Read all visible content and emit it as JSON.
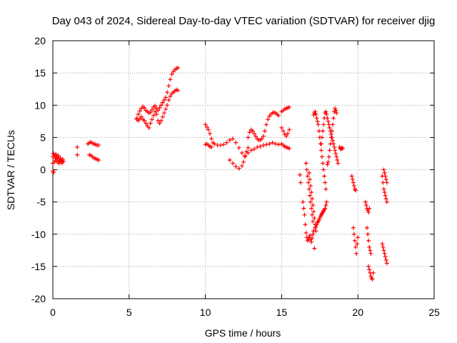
{
  "chart_data": {
    "type": "scatter",
    "title": "Day 043 of 2024, Sidereal Day-to-day VTEC variation (SDTVAR) for receiver djig",
    "xlabel": "GPS time / hours",
    "ylabel": "SDTVAR / TECUs",
    "xlim": [
      0,
      25
    ],
    "ylim": [
      -20,
      20
    ],
    "xticks": [
      0,
      5,
      10,
      15,
      20,
      25
    ],
    "yticks": [
      -20,
      -15,
      -10,
      -5,
      0,
      5,
      10,
      15,
      20
    ],
    "grid": true,
    "marker": "+",
    "colors": {
      "points": "#ff0000"
    },
    "series": [
      {
        "x": [
          0.0,
          0.05,
          0.1,
          0.15,
          0.2,
          0.25,
          0.3,
          0.35,
          0.4,
          0.45,
          0.5,
          0.55,
          0.6,
          0.65,
          0.7,
          0.0,
          0.1,
          0.2,
          0.3,
          0.4,
          0.5,
          0.6,
          0.0,
          0.05,
          1.6,
          1.6,
          2.3,
          2.4,
          2.5,
          2.6,
          2.7,
          2.8,
          2.9,
          3.0,
          2.4,
          2.5,
          2.6,
          2.7,
          2.8,
          2.9,
          3.0,
          5.5,
          5.6,
          5.7,
          5.8,
          5.9,
          6.0,
          6.1,
          6.2,
          6.3,
          6.4,
          6.5,
          6.6,
          6.7,
          6.8,
          6.9,
          7.0,
          7.1,
          7.2,
          7.3,
          7.4,
          7.5,
          7.6,
          7.7,
          7.8,
          7.9,
          8.0,
          8.1,
          8.2,
          5.5,
          5.6,
          5.7,
          5.8,
          5.9,
          6.0,
          6.1,
          6.2,
          6.3,
          6.4,
          6.5,
          6.6,
          6.7,
          6.8,
          6.9,
          7.0,
          7.1,
          7.2,
          7.3,
          7.4,
          7.5,
          7.6,
          7.7,
          7.8,
          7.9,
          8.0,
          8.1,
          8.2,
          10.0,
          10.1,
          10.2,
          10.3,
          10.4,
          10.5,
          10.6,
          10.8,
          11.0,
          11.2,
          11.4,
          11.6,
          11.8,
          12.0,
          12.2,
          12.4,
          12.6,
          12.8,
          13.0,
          13.2,
          13.4,
          13.6,
          13.8,
          14.0,
          14.2,
          14.4,
          14.6,
          14.8,
          10.0,
          10.1,
          10.2,
          10.3,
          10.4,
          12.8,
          12.9,
          13.0,
          13.1,
          13.2,
          13.3,
          13.4,
          13.5,
          13.6,
          13.7,
          13.8,
          13.9,
          14.0,
          14.1,
          14.2,
          14.3,
          14.4,
          14.5,
          14.6,
          14.7,
          14.8,
          11.6,
          11.8,
          12.0,
          12.2,
          12.4,
          12.5,
          12.6,
          12.7,
          12.8,
          15.0,
          15.1,
          15.2,
          15.3,
          15.4,
          15.5,
          15.0,
          15.1,
          15.2,
          15.3,
          15.4,
          15.5,
          15.0,
          15.1,
          15.2,
          15.3,
          15.4,
          15.5,
          16.2,
          16.25,
          16.4,
          16.45,
          16.5,
          16.55,
          16.6,
          16.65,
          16.7,
          16.75,
          16.8,
          16.85,
          16.9,
          16.95,
          17.0,
          17.05,
          17.1,
          16.6,
          16.65,
          16.7,
          16.75,
          16.8,
          16.85,
          16.9,
          16.95,
          17.0,
          17.05,
          17.1,
          17.15,
          16.8,
          16.85,
          16.9,
          16.95,
          17.0,
          17.05,
          17.1,
          17.15,
          17.2,
          17.25,
          17.1,
          17.15,
          17.2,
          17.25,
          17.3,
          17.35,
          17.4,
          17.45,
          17.5,
          17.55,
          17.6,
          17.65,
          17.7,
          17.75,
          17.8,
          17.85,
          17.9,
          17.2,
          17.25,
          17.3,
          17.35,
          17.4,
          17.45,
          17.5,
          17.55,
          17.6,
          17.65,
          17.7,
          17.75,
          17.8,
          17.85,
          17.9,
          17.95,
          17.6,
          17.65,
          17.7,
          17.75,
          17.8,
          17.85,
          17.9,
          17.95,
          18.0,
          18.05,
          18.1,
          18.15,
          18.2,
          18.25,
          18.3,
          18.35,
          18.4,
          18.45,
          18.5,
          18.55,
          18.6,
          18.65,
          18.7,
          18.0,
          18.05,
          18.1,
          18.15,
          18.2,
          18.25,
          18.3,
          18.35,
          18.4,
          18.45,
          18.5,
          18.55,
          18.6,
          18.8,
          18.85,
          18.9,
          18.95,
          19.0,
          19.6,
          19.65,
          19.7,
          19.75,
          19.8,
          19.85,
          19.7,
          19.75,
          19.8,
          19.85,
          19.9,
          19.95,
          20.0,
          20.5,
          20.55,
          20.6,
          20.65,
          20.7,
          20.75,
          20.6,
          20.65,
          20.7,
          20.75,
          20.8,
          20.85,
          20.7,
          20.75,
          20.8,
          20.85,
          20.9,
          20.95,
          21.0,
          21.6,
          21.65,
          21.7,
          21.75,
          21.8,
          21.85,
          21.9,
          21.6,
          21.65,
          21.7,
          21.75,
          21.8,
          21.85,
          21.9,
          21.7,
          21.75,
          21.8,
          21.85,
          21.9
        ],
        "y": [
          2.0,
          2.5,
          2.2,
          1.8,
          2.4,
          2.0,
          1.6,
          2.2,
          1.8,
          1.4,
          1.8,
          1.5,
          1.2,
          1.6,
          1.3,
          1.0,
          1.2,
          1.4,
          1.2,
          1.0,
          1.2,
          1.0,
          -0.2,
          -0.4,
          3.5,
          2.3,
          4.0,
          4.2,
          4.3,
          4.1,
          4.0,
          3.9,
          3.8,
          3.8,
          2.3,
          2.2,
          2.0,
          1.8,
          1.7,
          1.6,
          1.5,
          8.0,
          8.6,
          9.1,
          9.5,
          9.8,
          9.6,
          9.2,
          9.0,
          8.8,
          8.9,
          9.3,
          9.7,
          9.9,
          9.5,
          9.2,
          9.6,
          10.0,
          10.4,
          10.8,
          11.2,
          12.0,
          13.0,
          14.0,
          14.8,
          15.2,
          15.5,
          15.7,
          15.8,
          7.8,
          7.6,
          7.9,
          8.2,
          7.8,
          7.6,
          7.2,
          6.8,
          6.5,
          7.2,
          7.8,
          8.4,
          9.0,
          8.6,
          7.6,
          7.2,
          7.6,
          8.2,
          8.8,
          9.4,
          10.0,
          10.8,
          11.4,
          11.8,
          12.0,
          12.2,
          12.4,
          12.3,
          7.0,
          6.6,
          6.2,
          5.6,
          4.8,
          4.2,
          4.0,
          3.8,
          3.8,
          3.9,
          4.2,
          4.6,
          4.8,
          4.2,
          3.4,
          2.6,
          2.2,
          2.6,
          3.0,
          3.2,
          3.5,
          3.6,
          3.8,
          3.9,
          4.0,
          4.2,
          4.0,
          3.9,
          3.9,
          4.0,
          3.8,
          3.6,
          3.5,
          5.0,
          5.8,
          6.2,
          6.0,
          5.6,
          5.2,
          4.8,
          4.6,
          4.6,
          4.8,
          5.2,
          6.0,
          7.0,
          7.8,
          8.3,
          8.6,
          8.8,
          8.9,
          8.8,
          8.6,
          8.4,
          1.5,
          1.0,
          0.5,
          0.2,
          0.6,
          1.2,
          2.0,
          2.8,
          3.4,
          9.0,
          9.2,
          9.4,
          9.5,
          9.6,
          9.7,
          6.5,
          6.0,
          5.5,
          5.2,
          5.6,
          6.2,
          4.0,
          3.8,
          3.6,
          3.5,
          3.4,
          3.3,
          -0.8,
          -2.0,
          -5.0,
          -6.0,
          -7.0,
          -8.5,
          -9.8,
          -10.5,
          -11.0,
          -10.8,
          -10.5,
          -10.2,
          -10.8,
          -11.2,
          -10.6,
          -10.0,
          -9.5,
          1.0,
          0.0,
          -1.0,
          -2.0,
          -3.0,
          -4.0,
          -5.0,
          -6.0,
          -7.0,
          -8.0,
          -9.5,
          -12.2,
          -0.5,
          -1.5,
          -2.5,
          -3.5,
          -4.5,
          -5.5,
          -6.5,
          -7.5,
          -8.5,
          -9.5,
          8.5,
          8.8,
          9.0,
          8.6,
          8.0,
          7.5,
          7.0,
          6.0,
          5.0,
          4.0,
          3.0,
          2.0,
          1.0,
          0.0,
          -1.0,
          -2.0,
          -3.0,
          -9.0,
          -8.8,
          -8.5,
          -8.2,
          -8.0,
          -7.8,
          -7.5,
          -7.2,
          -7.0,
          -6.8,
          -6.6,
          -6.4,
          -6.2,
          -6.0,
          -5.5,
          -5.0,
          4.0,
          5.0,
          6.0,
          7.0,
          8.0,
          8.8,
          9.0,
          8.6,
          8.0,
          7.5,
          7.0,
          6.5,
          6.0,
          5.5,
          5.0,
          4.5,
          4.0,
          3.5,
          3.0,
          2.5,
          2.0,
          1.5,
          1.0,
          0.8,
          1.2,
          2.0,
          3.0,
          4.0,
          5.0,
          6.0,
          7.0,
          8.0,
          9.0,
          9.5,
          9.2,
          8.8,
          3.5,
          3.3,
          3.2,
          3.4,
          3.3,
          -1.0,
          -1.5,
          -2.0,
          -2.5,
          -3.0,
          -3.2,
          -9.0,
          -10.0,
          -11.0,
          -12.0,
          -13.0,
          -11.5,
          -10.5,
          -5.0,
          -5.5,
          -6.0,
          -6.3,
          -6.6,
          -6.0,
          -9.0,
          -10.0,
          -11.0,
          -12.0,
          -12.5,
          -13.0,
          -15.0,
          -15.5,
          -16.0,
          -16.5,
          -16.8,
          -17.0,
          -16.0,
          -1.0,
          -2.0,
          -3.0,
          -3.5,
          -4.0,
          -4.5,
          -5.0,
          -11.5,
          -12.0,
          -12.5,
          -13.0,
          -13.5,
          -14.0,
          -14.5,
          0.0,
          -0.5,
          -1.0,
          -1.5,
          -2.0
        ]
      }
    ]
  }
}
